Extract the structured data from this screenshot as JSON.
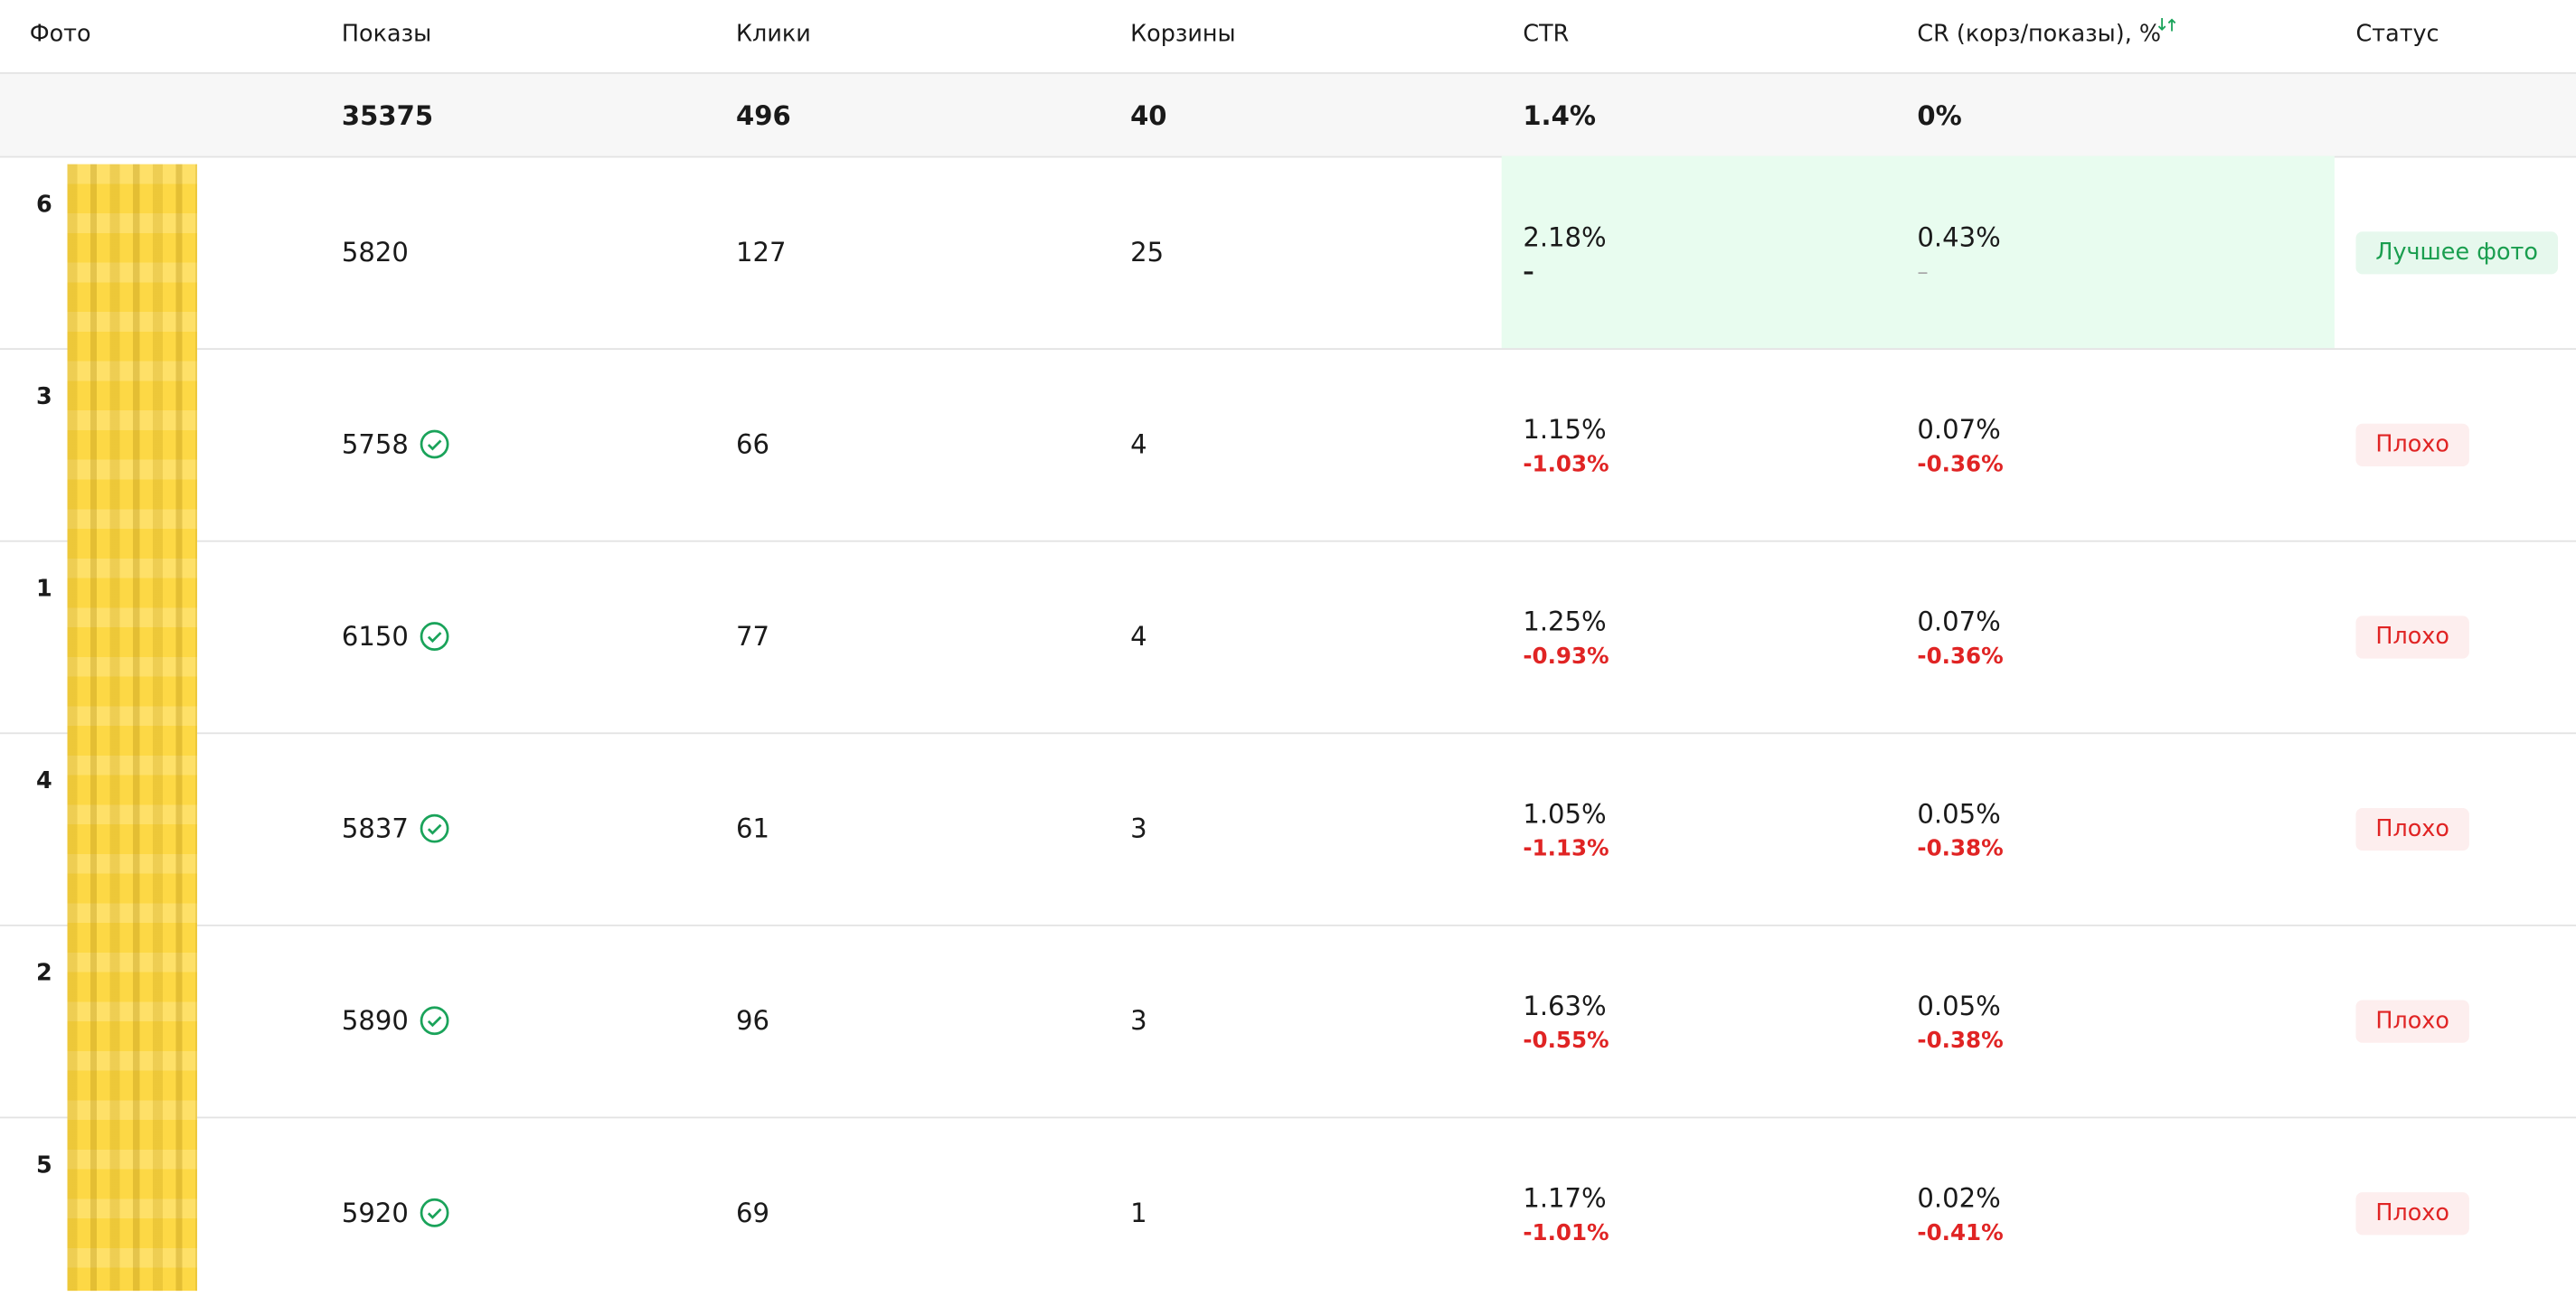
{
  "header": {
    "columns": [
      "Фото",
      "Показы",
      "Клики",
      "Корзины",
      "CTR",
      "CR (корз/показы), %",
      "Статус"
    ]
  },
  "totals": {
    "shows": "35375",
    "clicks": "496",
    "carts": "40",
    "ctr": "1.4%",
    "cr": "0%"
  },
  "rows": [
    {
      "index": "6",
      "shows": "5820",
      "verified": false,
      "clicks": "127",
      "carts": "25",
      "ctr": "2.18%",
      "ctr_delta": "–",
      "cr": "0.43%",
      "cr_delta": "–",
      "status": "Лучшее фото",
      "best": true
    },
    {
      "index": "3",
      "shows": "5758",
      "verified": true,
      "clicks": "66",
      "carts": "4",
      "ctr": "1.15%",
      "ctr_delta": "-1.03%",
      "cr": "0.07%",
      "cr_delta": "-0.36%",
      "status": "Плохо",
      "best": false
    },
    {
      "index": "1",
      "shows": "6150",
      "verified": true,
      "clicks": "77",
      "carts": "4",
      "ctr": "1.25%",
      "ctr_delta": "-0.93%",
      "cr": "0.07%",
      "cr_delta": "-0.36%",
      "status": "Плохо",
      "best": false
    },
    {
      "index": "4",
      "shows": "5837",
      "verified": true,
      "clicks": "61",
      "carts": "3",
      "ctr": "1.05%",
      "ctr_delta": "-1.13%",
      "cr": "0.05%",
      "cr_delta": "-0.38%",
      "status": "Плохо",
      "best": false
    },
    {
      "index": "2",
      "shows": "5890",
      "verified": true,
      "clicks": "96",
      "carts": "3",
      "ctr": "1.63%",
      "ctr_delta": "-0.55%",
      "cr": "0.05%",
      "cr_delta": "-0.38%",
      "status": "Плохо",
      "best": false
    },
    {
      "index": "5",
      "shows": "5920",
      "verified": true,
      "clicks": "69",
      "carts": "1",
      "ctr": "1.17%",
      "ctr_delta": "-1.01%",
      "cr": "0.02%",
      "cr_delta": "-0.41%",
      "status": "Плохо",
      "best": false
    }
  ]
}
